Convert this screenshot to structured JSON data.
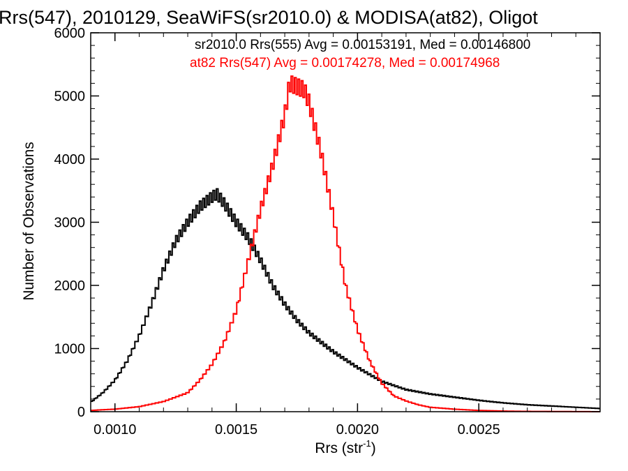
{
  "chart_data": {
    "type": "histogram",
    "title": "Rrs(547), 2010129, SeaWiFS(sr2010.0) & MODISA(at82), Oligot",
    "xlabel": "Rrs (str",
    "xlabel_sup": "-1",
    "xlabel_close": ")",
    "ylabel": "Number of Observations",
    "xlim": [
      0.0009,
      0.003
    ],
    "ylim": [
      0,
      6000
    ],
    "x_ticks": [
      0.001,
      0.0015,
      0.002,
      0.0025
    ],
    "x_tick_labels": [
      "0.0010",
      "0.0015",
      "0.0020",
      "0.0025"
    ],
    "y_ticks": [
      0,
      1000,
      2000,
      3000,
      4000,
      5000,
      6000
    ],
    "y_tick_labels": [
      "0",
      "1000",
      "2000",
      "3000",
      "4000",
      "5000",
      "6000"
    ],
    "grid": false,
    "legend_placement": "top-right",
    "series": [
      {
        "name": "sr2010.0 Rrs(555) Avg = 0.00153191, Med = 0.00146800",
        "color": "#000000",
        "x": [
          0.0009,
          0.00095,
          0.001,
          0.00105,
          0.0011,
          0.00115,
          0.0012,
          0.00125,
          0.0013,
          0.00135,
          0.0014,
          0.00142,
          0.00145,
          0.0015,
          0.00155,
          0.0016,
          0.00165,
          0.0017,
          0.00175,
          0.0018,
          0.0019,
          0.002,
          0.0021,
          0.0022,
          0.0023,
          0.0024,
          0.0025,
          0.0026,
          0.0027,
          0.0028,
          0.0029,
          0.003
        ],
        "y": [
          150,
          300,
          500,
          800,
          1200,
          1700,
          2250,
          2700,
          3000,
          3250,
          3400,
          3450,
          3300,
          3000,
          2750,
          2400,
          2000,
          1700,
          1450,
          1250,
          950,
          700,
          480,
          350,
          280,
          230,
          180,
          140,
          110,
          90,
          70,
          50
        ]
      },
      {
        "name": "at82 Rrs(547) Avg = 0.00174278, Med = 0.00174968",
        "color": "#ff0000",
        "x": [
          0.0009,
          0.001,
          0.0011,
          0.0012,
          0.0013,
          0.00135,
          0.0014,
          0.00145,
          0.0015,
          0.00155,
          0.0016,
          0.00165,
          0.0017,
          0.00172,
          0.00175,
          0.00178,
          0.0018,
          0.00185,
          0.0019,
          0.00195,
          0.002,
          0.00205,
          0.0021,
          0.00215,
          0.0022,
          0.00225,
          0.0023,
          0.0024,
          0.0025,
          0.0026,
          0.0027,
          0.003
        ],
        "y": [
          20,
          40,
          80,
          160,
          300,
          500,
          750,
          1100,
          1600,
          2400,
          3200,
          3900,
          4700,
          5200,
          5150,
          5100,
          4900,
          4100,
          3100,
          2000,
          1300,
          800,
          450,
          250,
          170,
          110,
          70,
          40,
          20,
          10,
          5,
          0
        ]
      }
    ]
  }
}
